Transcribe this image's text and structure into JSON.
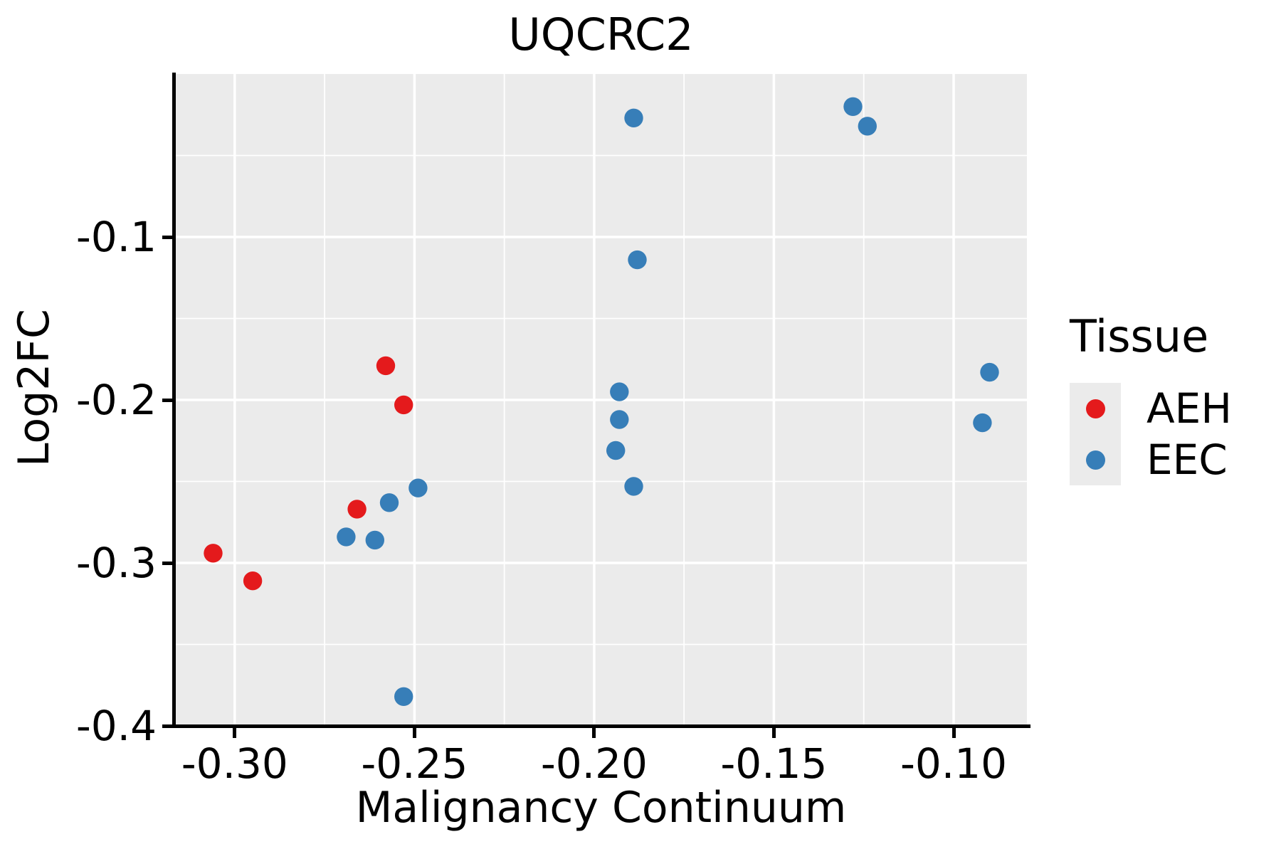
{
  "title": "UQCRC2",
  "chart_data": {
    "type": "scatter",
    "title": "UQCRC2",
    "xlabel": "Malignancy Continuum",
    "ylabel": "Log2FC",
    "legend_title": "Tissue",
    "legend_position": "right",
    "grid": true,
    "panel_bg": "#EBEBEB",
    "grid_color": "#FFFFFF",
    "xlim": [
      -0.3166,
      -0.0796
    ],
    "ylim": [
      -0.4,
      0.0
    ],
    "x_major_ticks": [
      -0.3,
      -0.25,
      -0.2,
      -0.15,
      -0.1
    ],
    "x_tick_labels": [
      "-0.30",
      "-0.25",
      "-0.20",
      "-0.15",
      "-0.10"
    ],
    "x_minor_ticks": [
      -0.275,
      -0.225,
      -0.175,
      -0.125
    ],
    "y_major_ticks": [
      -0.1,
      -0.2,
      -0.3,
      -0.4
    ],
    "y_tick_labels": [
      "-0.1",
      "-0.2",
      "-0.3",
      "-0.4"
    ],
    "y_minor_ticks": [
      -0.05,
      -0.15,
      -0.25,
      -0.35
    ],
    "series": [
      {
        "name": "AEH",
        "color": "#E41A1C",
        "points": [
          [
            -0.306,
            -0.294
          ],
          [
            -0.295,
            -0.311
          ],
          [
            -0.266,
            -0.267
          ],
          [
            -0.258,
            -0.179
          ],
          [
            -0.253,
            -0.203
          ]
        ]
      },
      {
        "name": "EEC",
        "color": "#377EB8",
        "points": [
          [
            -0.269,
            -0.284
          ],
          [
            -0.261,
            -0.286
          ],
          [
            -0.257,
            -0.263
          ],
          [
            -0.249,
            -0.254
          ],
          [
            -0.253,
            -0.382
          ],
          [
            -0.189,
            -0.027
          ],
          [
            -0.188,
            -0.114
          ],
          [
            -0.193,
            -0.195
          ],
          [
            -0.193,
            -0.212
          ],
          [
            -0.194,
            -0.231
          ],
          [
            -0.189,
            -0.253
          ],
          [
            -0.128,
            -0.02
          ],
          [
            -0.124,
            -0.032
          ],
          [
            -0.09,
            -0.183
          ],
          [
            -0.092,
            -0.214
          ]
        ]
      }
    ]
  }
}
